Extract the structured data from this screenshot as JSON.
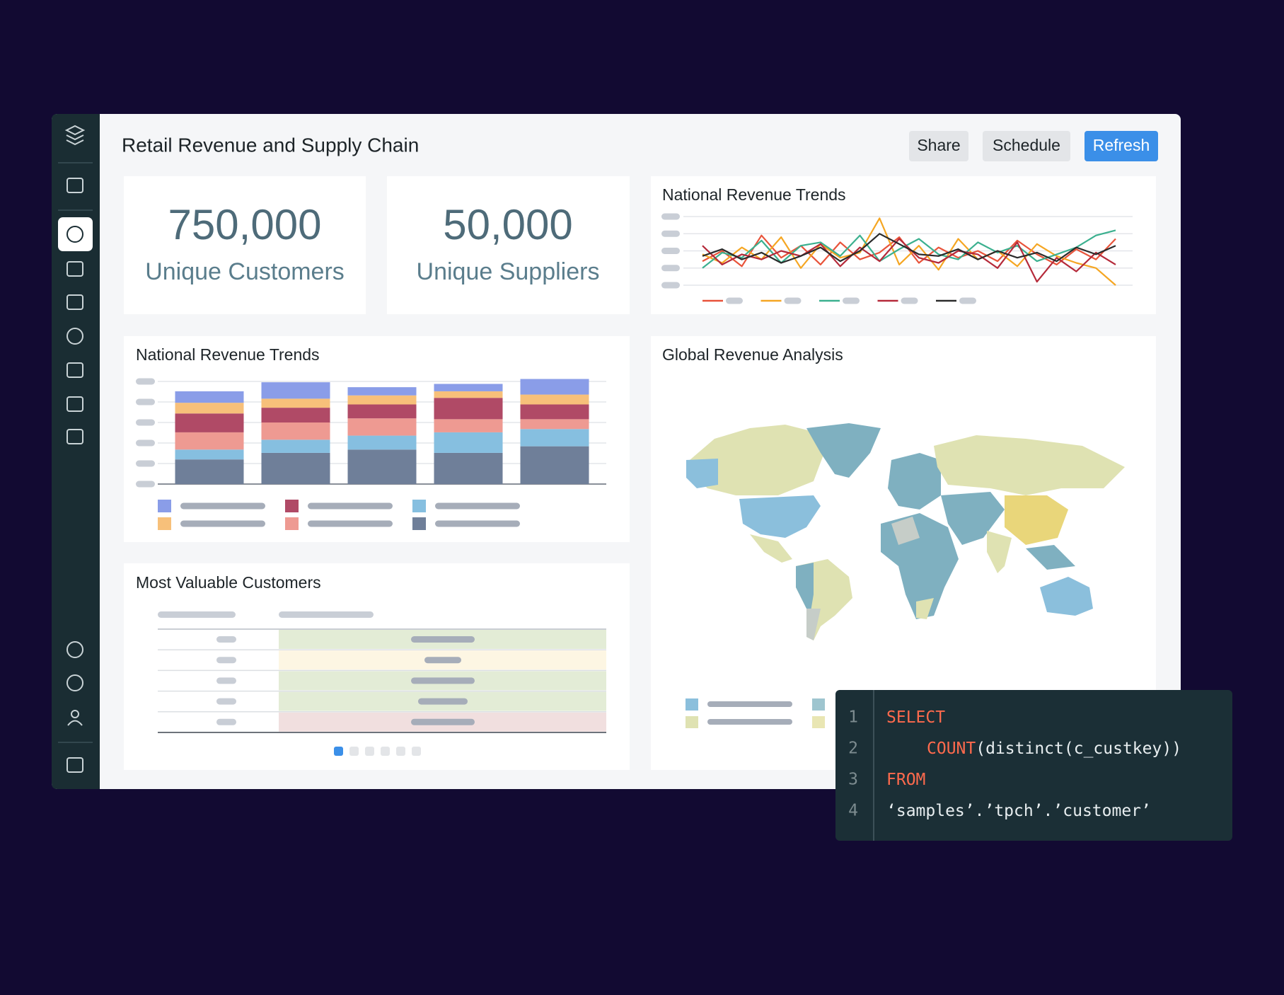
{
  "header": {
    "title": "Retail Revenue and Supply Chain",
    "buttons": [
      "Share",
      "Schedule",
      "Refresh"
    ]
  },
  "kpis": [
    {
      "value": "750,000",
      "label": "Unique Customers"
    },
    {
      "value": "50,000",
      "label": "Unique Suppliers"
    }
  ],
  "chart_data": [
    {
      "type": "line",
      "title": "National Revenue Trends",
      "categories": [
        null,
        null,
        null,
        null,
        null,
        null,
        null,
        null,
        null,
        null,
        null,
        null,
        null,
        null,
        null,
        null,
        null,
        null,
        null,
        null,
        null,
        null
      ],
      "ylim": [
        0,
        4
      ],
      "yticks": [
        0,
        1,
        2,
        3,
        4
      ],
      "grid": true,
      "series": [
        {
          "color": "#e8533a",
          "values": [
            1.4,
            2.0,
            1.1,
            2.9,
            1.6,
            2.3,
            1.2,
            2.5,
            1.5,
            1.9,
            2.8,
            1.3,
            2.2,
            1.6,
            2.0,
            1.4,
            2.6,
            1.8,
            1.2,
            2.1,
            1.5,
            2.7
          ]
        },
        {
          "color": "#f5a623",
          "values": [
            1.8,
            1.3,
            2.2,
            1.5,
            2.8,
            1.0,
            2.4,
            1.6,
            1.9,
            3.9,
            1.2,
            2.3,
            0.9,
            2.7,
            1.5,
            2.0,
            1.1,
            2.4,
            1.7,
            1.3,
            1.0,
            0.0
          ]
        },
        {
          "color": "#3bb08f",
          "values": [
            1.0,
            1.9,
            1.6,
            2.6,
            1.3,
            2.3,
            2.5,
            1.7,
            2.9,
            1.4,
            2.1,
            2.7,
            1.8,
            1.5,
            2.5,
            1.9,
            2.3,
            1.4,
            1.8,
            2.2,
            2.9,
            3.2
          ]
        },
        {
          "color": "#b52a3a",
          "values": [
            2.3,
            1.2,
            1.8,
            1.5,
            2.0,
            1.7,
            2.4,
            1.1,
            2.2,
            1.4,
            2.7,
            1.6,
            1.3,
            2.0,
            1.8,
            1.0,
            2.5,
            0.2,
            1.6,
            0.8,
            1.9,
            1.2
          ]
        },
        {
          "color": "#2b2b2b",
          "values": [
            1.7,
            2.1,
            1.5,
            1.9,
            1.3,
            1.7,
            2.2,
            1.4,
            2.0,
            3.0,
            2.4,
            1.8,
            1.7,
            2.1,
            1.5,
            2.0,
            1.6,
            1.9,
            1.4,
            2.2,
            1.8,
            2.3
          ]
        }
      ]
    },
    {
      "type": "stacked-bar",
      "title": "National Revenue Trends",
      "categories": [
        null,
        null,
        null,
        null,
        null
      ],
      "ylim": [
        0,
        5
      ],
      "yticks": [
        0,
        1,
        2,
        3,
        4,
        5
      ],
      "grid": true,
      "series": [
        {
          "color": "#6f7f99",
          "values": [
            1.2,
            1.52,
            1.68,
            1.52,
            1.84
          ]
        },
        {
          "color": "#86bfe0",
          "values": [
            0.48,
            0.64,
            0.68,
            1.0,
            0.84
          ]
        },
        {
          "color": "#ee9a92",
          "values": [
            0.84,
            0.84,
            0.84,
            0.64,
            0.48
          ]
        },
        {
          "color": "#b04a66",
          "values": [
            0.92,
            0.72,
            0.68,
            1.04,
            0.72
          ]
        },
        {
          "color": "#f7c07a",
          "values": [
            0.52,
            0.44,
            0.44,
            0.32,
            0.48
          ]
        },
        {
          "color": "#8a9de8",
          "values": [
            0.56,
            0.8,
            0.4,
            0.36,
            0.76
          ]
        }
      ]
    }
  ],
  "table": {
    "title": "Most Valuable Customers"
  },
  "map": {
    "title": "Global Revenue Analysis"
  },
  "code": {
    "line_numbers": [
      1,
      2,
      3,
      4
    ],
    "lines": [
      {
        "indent": 0,
        "tokens": [
          {
            "text": "SELECT",
            "kind": "keyword"
          }
        ]
      },
      {
        "indent": 1,
        "tokens": [
          {
            "text": "COUNT",
            "kind": "keyword"
          },
          {
            "text": "(distinct(c_custkey))",
            "kind": "plain"
          }
        ]
      },
      {
        "indent": 0,
        "tokens": [
          {
            "text": "FROM",
            "kind": "keyword"
          }
        ]
      },
      {
        "indent": 0,
        "tokens": [
          {
            "text": "‘samples’.’tpch’.’customer’",
            "kind": "plain"
          }
        ]
      }
    ]
  }
}
